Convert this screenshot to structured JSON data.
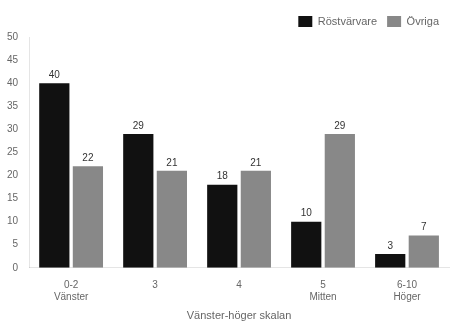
{
  "chart_data": {
    "type": "bar",
    "categories": [
      "0-2\nVänster",
      "3",
      "4",
      "5\nMitten",
      "6-10\nHöger"
    ],
    "series": [
      {
        "name": "Röstvärvare",
        "color": "#111111",
        "values": [
          40,
          29,
          18,
          10,
          3
        ]
      },
      {
        "name": "Övriga",
        "color": "#888888",
        "values": [
          22,
          21,
          21,
          29,
          7
        ]
      }
    ],
    "xlabel": "Vänster-höger skalan",
    "ylim": [
      0,
      50
    ],
    "yticks": [
      0,
      5,
      10,
      15,
      20,
      25,
      30,
      35,
      40,
      45,
      50
    ],
    "grid": false,
    "legend": "upper right",
    "data_labels": true
  }
}
